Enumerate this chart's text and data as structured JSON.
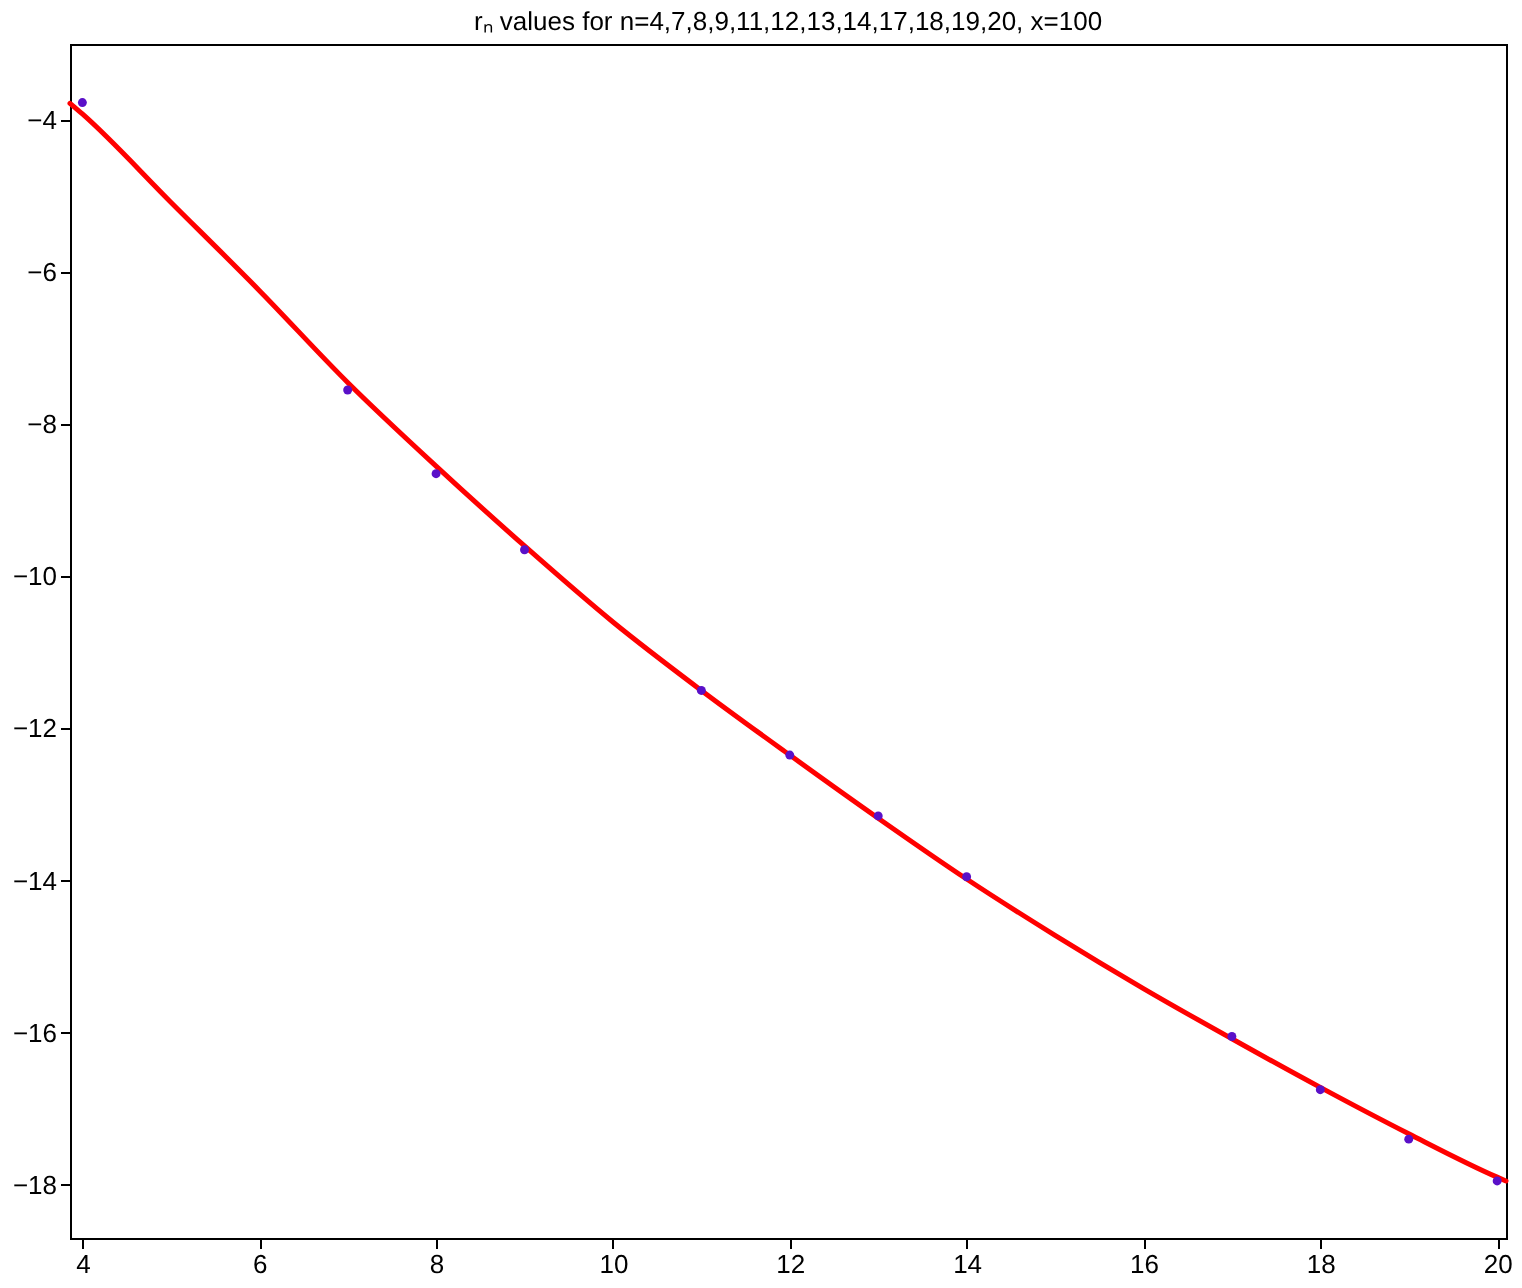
{
  "chart_data": {
    "type": "scatter",
    "title": "rₙ values for n=4,7,8,9,11,12,13,14,17,18,19,20, x=100",
    "xlim": [
      3.86,
      20.1
    ],
    "ylim": [
      -18.7,
      -3.0
    ],
    "xticks": [
      4,
      6,
      8,
      10,
      12,
      14,
      16,
      18,
      20
    ],
    "yticks": [
      -18,
      -16,
      -14,
      -12,
      -10,
      -8,
      -6,
      -4
    ],
    "grid": false,
    "series": [
      {
        "type": "line",
        "color": "#ff0000",
        "marker": "none",
        "line_style": "solid",
        "x": [
          3.86,
          4,
          5,
          6,
          7,
          8,
          9,
          10,
          11,
          12,
          13,
          14,
          15,
          16,
          17,
          18,
          19,
          20,
          20.1
        ],
        "values": [
          -3.78,
          -3.92,
          -5.08,
          -6.24,
          -7.45,
          -8.55,
          -9.6,
          -10.6,
          -11.5,
          -12.35,
          -13.18,
          -13.98,
          -14.72,
          -15.42,
          -16.08,
          -16.72,
          -17.33,
          -17.9,
          -17.95
        ]
      },
      {
        "color": "#5a10c8",
        "marker": "circle",
        "x": [
          4,
          7,
          8,
          9,
          11,
          12,
          13,
          14,
          17,
          18,
          19,
          20
        ],
        "values": [
          -3.77,
          -7.55,
          -8.65,
          -9.65,
          -11.5,
          -12.35,
          -13.15,
          -13.95,
          -16.05,
          -16.75,
          -17.4,
          -17.95
        ]
      }
    ]
  }
}
